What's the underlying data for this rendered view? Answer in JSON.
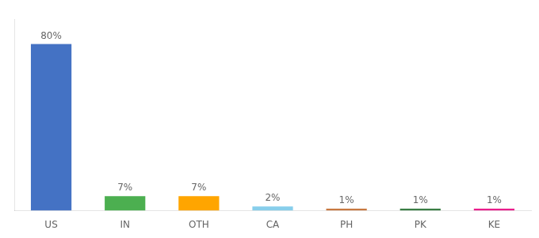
{
  "chart_data": {
    "type": "bar",
    "categories": [
      "US",
      "IN",
      "OTH",
      "CA",
      "PH",
      "PK",
      "KE"
    ],
    "values": [
      80,
      7,
      7,
      2,
      1,
      1,
      1
    ],
    "value_labels": [
      "80%",
      "7%",
      "7%",
      "2%",
      "1%",
      "1%",
      "1%"
    ],
    "colors": [
      "#4472c4",
      "#4caf50",
      "#ffa500",
      "#87ceeb",
      "#c87941",
      "#3a7d44",
      "#e91e8c"
    ],
    "ylim": [
      0,
      92
    ],
    "grid": false,
    "data_labels": true,
    "tick_labels": "x"
  }
}
